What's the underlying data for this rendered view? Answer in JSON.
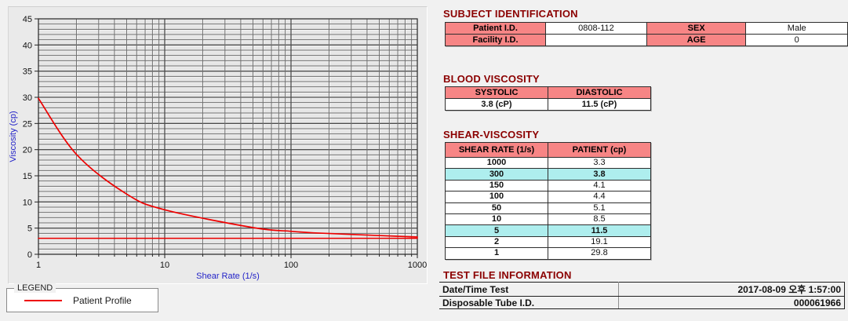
{
  "colors": {
    "section_title": "#8b0000",
    "table_header_bg": "#f78585",
    "row_highlight_bg": "#aeeeee",
    "series_red": "#ee0000",
    "axis_title_blue": "#2323c8"
  },
  "chart_data": {
    "type": "line",
    "title": "",
    "xlabel": "Shear Rate (1/s)",
    "ylabel": "Viscosity (cp)",
    "x_scale": "log",
    "xlim": [
      1,
      1000
    ],
    "ylim": [
      0,
      45
    ],
    "x_ticks": [
      1,
      10,
      100,
      1000
    ],
    "y_ticks": [
      0,
      5,
      10,
      15,
      20,
      25,
      30,
      35,
      40,
      45
    ],
    "y_minor_step": 1,
    "grid": "major+minor",
    "legend_position": "below-left",
    "series": [
      {
        "name": "Patient Profile",
        "color": "#ee0000",
        "style": "smooth",
        "x": [
          1,
          2,
          5,
          10,
          50,
          100,
          150,
          300,
          1000
        ],
        "y": [
          29.8,
          19.1,
          11.5,
          8.5,
          5.1,
          4.4,
          4.1,
          3.8,
          3.3
        ]
      },
      {
        "name": "baseline",
        "color": "#ee0000",
        "style": "straight",
        "x": [
          1,
          1000
        ],
        "y": [
          3.05,
          3.05
        ]
      }
    ]
  },
  "legend": {
    "title": "LEGEND",
    "entries": [
      {
        "label": "Patient Profile",
        "color": "#ee0000"
      }
    ]
  },
  "subject_identification": {
    "title": "SUBJECT IDENTIFICATION",
    "rows": [
      {
        "label1": "Patient I.D.",
        "value1": "0808-112",
        "label2": "SEX",
        "value2": "Male"
      },
      {
        "label1": "Facility I.D.",
        "value1": "",
        "label2": "AGE",
        "value2": "0"
      }
    ]
  },
  "blood_viscosity": {
    "title": "BLOOD VISCOSITY",
    "headers": [
      "SYSTOLIC",
      "DIASTOLIC"
    ],
    "values": [
      "3.8 (cP)",
      "11.5 (cP)"
    ]
  },
  "shear_viscosity": {
    "title": "SHEAR-VISCOSITY",
    "headers": [
      "SHEAR RATE (1/s)",
      "PATIENT (cp)"
    ],
    "rows": [
      {
        "shear_rate": "1000",
        "patient": "3.3",
        "highlight": false
      },
      {
        "shear_rate": "300",
        "patient": "3.8",
        "highlight": true
      },
      {
        "shear_rate": "150",
        "patient": "4.1",
        "highlight": false
      },
      {
        "shear_rate": "100",
        "patient": "4.4",
        "highlight": false
      },
      {
        "shear_rate": "50",
        "patient": "5.1",
        "highlight": false
      },
      {
        "shear_rate": "10",
        "patient": "8.5",
        "highlight": false
      },
      {
        "shear_rate": "5",
        "patient": "11.5",
        "highlight": true
      },
      {
        "shear_rate": "2",
        "patient": "19.1",
        "highlight": false
      },
      {
        "shear_rate": "1",
        "patient": "29.8",
        "highlight": false
      }
    ]
  },
  "test_file_information": {
    "title": "TEST FILE INFORMATION",
    "rows": [
      {
        "label": "Date/Time Test",
        "value": "2017-08-09  오후 1:57:00"
      },
      {
        "label": "Disposable Tube I.D.",
        "value": "000061966"
      }
    ]
  }
}
